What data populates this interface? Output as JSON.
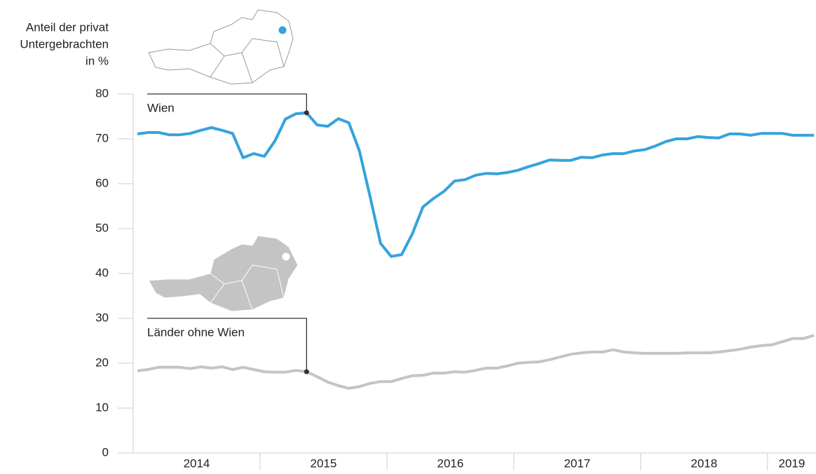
{
  "chart_data": {
    "type": "line",
    "y_label": [
      "Anteil der privat",
      "Untergebrachten",
      "in %"
    ],
    "categories": [
      "2014",
      null,
      null,
      null,
      null,
      null,
      null,
      null,
      null,
      null,
      null,
      null,
      "2015",
      null,
      null,
      null,
      null,
      null,
      null,
      null,
      null,
      null,
      null,
      null,
      "2016",
      null,
      null,
      null,
      null,
      null,
      null,
      null,
      null,
      null,
      null,
      null,
      "2017",
      null,
      null,
      null,
      null,
      null,
      null,
      null,
      null,
      null,
      null,
      null,
      "2018",
      null,
      null,
      null,
      null,
      null,
      null,
      null,
      null,
      null,
      null,
      null,
      "2019",
      null,
      null,
      null,
      null
    ],
    "series": [
      {
        "name": "Wien",
        "color": "#35a3db",
        "values": [
          71.1,
          71.4,
          71.4,
          70.9,
          70.9,
          71.2,
          71.9,
          72.5,
          71.9,
          71.2,
          65.8,
          66.7,
          66.1,
          69.5,
          74.4,
          75.6,
          75.8,
          73.1,
          72.8,
          74.5,
          73.6,
          67.3,
          57.2,
          46.7,
          43.8,
          44.2,
          48.8,
          54.8,
          56.7,
          58.3,
          60.6,
          60.9,
          61.9,
          62.3,
          62.2,
          62.5,
          63.0,
          63.8,
          64.5,
          65.3,
          65.2,
          65.2,
          65.9,
          65.8,
          66.4,
          66.7,
          66.7,
          67.3,
          67.6,
          68.4,
          69.4,
          70.0,
          70.0,
          70.5,
          70.3,
          70.2,
          71.1,
          71.1,
          70.8,
          71.2,
          71.2,
          71.2,
          70.8,
          70.8,
          70.8
        ]
      },
      {
        "name": "Länder ohne Wien",
        "color": "#c4c4c4",
        "values": [
          18.3,
          18.6,
          19.1,
          19.1,
          19.1,
          18.8,
          19.2,
          18.9,
          19.2,
          18.6,
          19.1,
          18.6,
          18.1,
          18.0,
          18.0,
          18.4,
          18.1,
          17.0,
          15.8,
          15.0,
          14.4,
          14.8,
          15.5,
          15.9,
          15.9,
          16.6,
          17.2,
          17.3,
          17.8,
          17.8,
          18.1,
          18.0,
          18.4,
          18.9,
          18.9,
          19.4,
          20.0,
          20.2,
          20.3,
          20.8,
          21.4,
          22.0,
          22.3,
          22.5,
          22.5,
          23.0,
          22.5,
          22.3,
          22.2,
          22.2,
          22.2,
          22.2,
          22.3,
          22.3,
          22.3,
          22.5,
          22.8,
          23.1,
          23.6,
          23.9,
          24.1,
          24.8,
          25.5,
          25.5,
          26.2
        ]
      }
    ],
    "annotations": [
      {
        "series": 0,
        "index": 16
      },
      {
        "series": 1,
        "index": 16
      }
    ],
    "ylim": [
      0,
      80
    ],
    "yticks": [
      0,
      10,
      20,
      30,
      40,
      50,
      60,
      70,
      80
    ]
  }
}
